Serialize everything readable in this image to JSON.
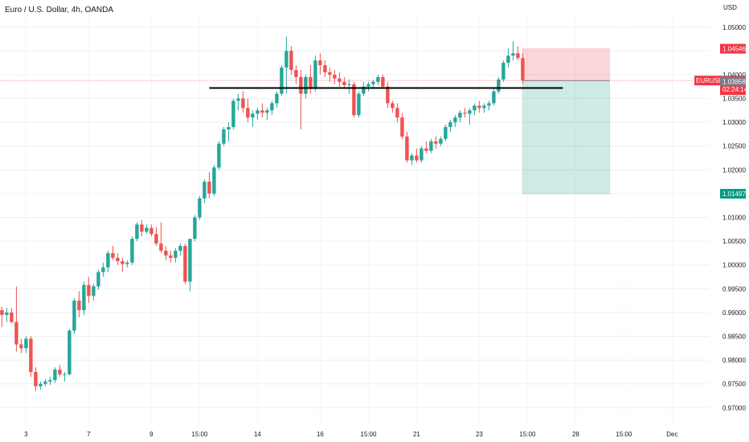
{
  "chart_title": "Euro / U.S. Dollar, 4h, OANDA",
  "currency": "USD",
  "colors": {
    "up": "#26a69a",
    "down": "#ef5350",
    "grid": "#eef0f3",
    "axis_text": "#131722"
  },
  "chart_data": {
    "type": "candlestick",
    "symbol": "EURUSD",
    "ylim": [
      0.9665,
      1.053
    ],
    "y_ticks": [
      "1.05000",
      "1.04500",
      "1.04000",
      "1.03500",
      "1.03000",
      "1.02500",
      "1.02000",
      "1.01500",
      "1.01000",
      "1.00500",
      "1.00000",
      "0.99500",
      "0.99000",
      "0.98500",
      "0.98000",
      "0.97500",
      "0.97000"
    ],
    "x_ticks": [
      {
        "label": "3",
        "i": 5
      },
      {
        "label": "7",
        "i": 18
      },
      {
        "label": "9",
        "i": 31
      },
      {
        "label": "15:00",
        "i": 41
      },
      {
        "label": "14",
        "i": 53
      },
      {
        "label": "16",
        "i": 66
      },
      {
        "label": "15:00",
        "i": 76
      },
      {
        "label": "21",
        "i": 86
      },
      {
        "label": "23",
        "i": 99
      },
      {
        "label": "15:00",
        "i": 109
      },
      {
        "label": "28",
        "i": 119
      },
      {
        "label": "15:00",
        "i": 129
      },
      {
        "label": "Dec",
        "i": 139
      }
    ],
    "candles": [
      [
        0.9905,
        0.9912,
        0.987,
        0.9895
      ],
      [
        0.9895,
        0.991,
        0.988,
        0.99
      ],
      [
        0.99,
        0.991,
        0.9878,
        0.988
      ],
      [
        0.988,
        0.9955,
        0.9818,
        0.9833
      ],
      [
        0.9833,
        0.9845,
        0.9815,
        0.9825
      ],
      [
        0.9825,
        0.985,
        0.9815,
        0.9845
      ],
      [
        0.9845,
        0.985,
        0.9765,
        0.9775
      ],
      [
        0.9775,
        0.9785,
        0.9735,
        0.9745
      ],
      [
        0.9745,
        0.9755,
        0.9738,
        0.975
      ],
      [
        0.975,
        0.976,
        0.9745,
        0.9755
      ],
      [
        0.9755,
        0.9765,
        0.9748,
        0.9758
      ],
      [
        0.9758,
        0.9785,
        0.9752,
        0.978
      ],
      [
        0.978,
        0.979,
        0.9765,
        0.977
      ],
      [
        0.977,
        0.9775,
        0.9755,
        0.977
      ],
      [
        0.977,
        0.9865,
        0.9768,
        0.9862
      ],
      [
        0.9862,
        0.993,
        0.9855,
        0.9925
      ],
      [
        0.9925,
        0.9945,
        0.989,
        0.9905
      ],
      [
        0.9905,
        0.9965,
        0.9895,
        0.9958
      ],
      [
        0.9958,
        0.9975,
        0.992,
        0.9935
      ],
      [
        0.9935,
        0.996,
        0.9925,
        0.9955
      ],
      [
        0.9955,
        0.999,
        0.9948,
        0.9985
      ],
      [
        0.9985,
        1.0005,
        0.9975,
        0.9995
      ],
      [
        0.9995,
        1.003,
        0.9985,
        1.0025
      ],
      [
        1.0025,
        1.004,
        1.001,
        1.0015
      ],
      [
        1.0015,
        1.0025,
        1.0,
        1.0008
      ],
      [
        1.0008,
        1.0015,
        0.9985,
        1.0002
      ],
      [
        1.0002,
        1.001,
        0.9995,
        1.0005
      ],
      [
        1.0005,
        1.006,
        1.0,
        1.0055
      ],
      [
        1.0055,
        1.009,
        1.005,
        1.0085
      ],
      [
        1.0085,
        1.0095,
        1.006,
        1.007
      ],
      [
        1.007,
        1.0085,
        1.0065,
        1.0078
      ],
      [
        1.0078,
        1.0085,
        1.006,
        1.0065
      ],
      [
        1.0065,
        1.008,
        1.004,
        1.0045
      ],
      [
        1.0045,
        1.009,
        1.0025,
        1.003
      ],
      [
        1.003,
        1.004,
        1.001,
        1.002
      ],
      [
        1.002,
        1.003,
        1.0005,
        1.0015
      ],
      [
        1.0015,
        1.0035,
        1.0005,
        1.003
      ],
      [
        1.003,
        1.0045,
        1.002,
        1.004
      ],
      [
        1.004,
        1.0045,
        0.996,
        0.9965
      ],
      [
        0.9965,
        1.0055,
        0.9945,
        1.0055
      ],
      [
        1.0055,
        1.0105,
        1.005,
        1.01
      ],
      [
        1.01,
        1.0145,
        1.0095,
        1.014
      ],
      [
        1.014,
        1.018,
        1.013,
        1.0175
      ],
      [
        1.0175,
        1.0195,
        1.014,
        1.015
      ],
      [
        1.015,
        1.021,
        1.0145,
        1.0205
      ],
      [
        1.0205,
        1.026,
        1.02,
        1.0255
      ],
      [
        1.0255,
        1.029,
        1.025,
        1.0285
      ],
      [
        1.0285,
        1.03,
        1.026,
        1.029
      ],
      [
        1.029,
        1.035,
        1.0285,
        1.0345
      ],
      [
        1.0345,
        1.036,
        1.0325,
        1.035
      ],
      [
        1.035,
        1.0365,
        1.032,
        1.033
      ],
      [
        1.033,
        1.035,
        1.03,
        1.031
      ],
      [
        1.031,
        1.0325,
        1.029,
        1.0318
      ],
      [
        1.0318,
        1.033,
        1.0305,
        1.0325
      ],
      [
        1.0325,
        1.034,
        1.031,
        1.032
      ],
      [
        1.032,
        1.033,
        1.0305,
        1.0325
      ],
      [
        1.0325,
        1.0345,
        1.0315,
        1.034
      ],
      [
        1.034,
        1.0365,
        1.033,
        1.036
      ],
      [
        1.036,
        1.042,
        1.0355,
        1.0415
      ],
      [
        1.0415,
        1.048,
        1.036,
        1.045
      ],
      [
        1.045,
        1.046,
        1.04,
        1.041
      ],
      [
        1.041,
        1.042,
        1.038,
        1.0395
      ],
      [
        1.0395,
        1.041,
        1.0285,
        1.036
      ],
      [
        1.036,
        1.04,
        1.035,
        1.0395
      ],
      [
        1.0395,
        1.042,
        1.036,
        1.037
      ],
      [
        1.037,
        1.044,
        1.0365,
        1.043
      ],
      [
        1.043,
        1.0445,
        1.04,
        1.042
      ],
      [
        1.042,
        1.043,
        1.0395,
        1.0405
      ],
      [
        1.0405,
        1.0415,
        1.0385,
        1.04
      ],
      [
        1.04,
        1.041,
        1.038,
        1.0392
      ],
      [
        1.0392,
        1.0405,
        1.0375,
        1.0385
      ],
      [
        1.0385,
        1.0395,
        1.037,
        1.0378
      ],
      [
        1.0378,
        1.039,
        1.036,
        1.038
      ],
      [
        1.038,
        1.0385,
        1.031,
        1.0315
      ],
      [
        1.0315,
        1.0365,
        1.031,
        1.036
      ],
      [
        1.036,
        1.0385,
        1.0355,
        1.0375
      ],
      [
        1.0375,
        1.0385,
        1.0365,
        1.038
      ],
      [
        1.038,
        1.039,
        1.037,
        1.0385
      ],
      [
        1.0385,
        1.04,
        1.0378,
        1.0395
      ],
      [
        1.0395,
        1.04,
        1.037,
        1.0375
      ],
      [
        1.0375,
        1.0385,
        1.033,
        1.034
      ],
      [
        1.034,
        1.0345,
        1.032,
        1.033
      ],
      [
        1.033,
        1.034,
        1.03,
        1.031
      ],
      [
        1.031,
        1.032,
        1.0265,
        1.027
      ],
      [
        1.027,
        1.028,
        1.0215,
        1.022
      ],
      [
        1.022,
        1.0235,
        1.021,
        1.023
      ],
      [
        1.023,
        1.0245,
        1.0215,
        1.022
      ],
      [
        1.022,
        1.025,
        1.0215,
        1.0245
      ],
      [
        1.0245,
        1.026,
        1.0235,
        1.024
      ],
      [
        1.024,
        1.0265,
        1.0235,
        1.026
      ],
      [
        1.026,
        1.027,
        1.0245,
        1.0255
      ],
      [
        1.0255,
        1.027,
        1.025,
        1.0265
      ],
      [
        1.0265,
        1.0295,
        1.026,
        1.029
      ],
      [
        1.029,
        1.0305,
        1.028,
        1.03
      ],
      [
        1.03,
        1.0315,
        1.029,
        1.031
      ],
      [
        1.031,
        1.0325,
        1.03,
        1.032
      ],
      [
        1.032,
        1.033,
        1.031,
        1.0318
      ],
      [
        1.0318,
        1.033,
        1.0295,
        1.0325
      ],
      [
        1.0325,
        1.034,
        1.0315,
        1.0335
      ],
      [
        1.0335,
        1.0345,
        1.032,
        1.033
      ],
      [
        1.033,
        1.034,
        1.032,
        1.0335
      ],
      [
        1.0335,
        1.0345,
        1.0325,
        1.034
      ],
      [
        1.034,
        1.037,
        1.0335,
        1.0365
      ],
      [
        1.0365,
        1.0395,
        1.036,
        1.039
      ],
      [
        1.039,
        1.043,
        1.0385,
        1.0425
      ],
      [
        1.0425,
        1.0455,
        1.0415,
        1.044
      ],
      [
        1.044,
        1.047,
        1.043,
        1.0445
      ],
      [
        1.0445,
        1.046,
        1.043,
        1.0435
      ],
      [
        1.0435,
        1.0445,
        1.038,
        1.0388
      ]
    ],
    "horizontal_line": {
      "y": 1.0372,
      "i_start": 37,
      "i_end": 118
    },
    "position": {
      "i_start": 108,
      "i_end": 126,
      "entry": 1.03877,
      "stop": 1.04546,
      "target": 1.01497
    },
    "price_tags": [
      {
        "label": "1.04546",
        "y": 1.04546,
        "color": "#f23645"
      },
      {
        "label": "EURUSD",
        "sub": "1.03877",
        "y": 1.03877,
        "color": "#f23645",
        "countdown": "02:24:14"
      },
      {
        "label": "1.03858",
        "y": 1.03858,
        "color": "#787b86"
      },
      {
        "label": "1.01497",
        "y": 1.01497,
        "color": "#089981"
      }
    ]
  }
}
